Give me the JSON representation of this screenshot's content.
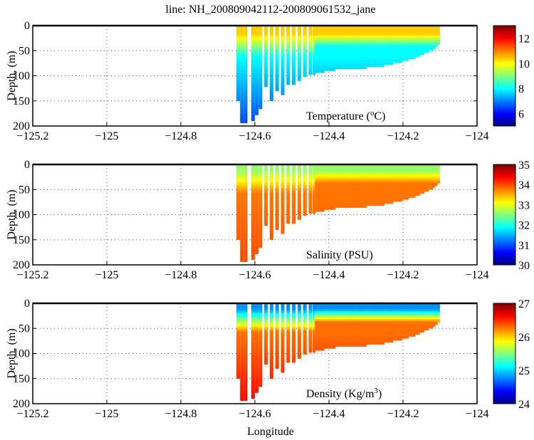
{
  "chart_data": {
    "type": "scatter",
    "title": "line: NH_200809042112-200809061532_jane",
    "xlabel": "Longitude",
    "ylabel": "Depth, (m)",
    "xlim": [
      -125.2,
      -124
    ],
    "ylim": [
      200,
      0
    ],
    "xticks": [
      "-125.2",
      "-125",
      "-124.8",
      "-124.6",
      "-124.4",
      "-124.2",
      "-124"
    ],
    "yticks": [
      "0",
      "50",
      "100",
      "150",
      "200"
    ],
    "grid": true,
    "casts": [
      {
        "lon": -124.645,
        "bottom": 145
      },
      {
        "lon": -124.635,
        "bottom": 190
      },
      {
        "lon": -124.625,
        "bottom": 190
      },
      {
        "lon": -124.605,
        "bottom": 188
      },
      {
        "lon": -124.595,
        "bottom": 175
      },
      {
        "lon": -124.585,
        "bottom": 162
      },
      {
        "lon": -124.57,
        "bottom": 120
      },
      {
        "lon": -124.555,
        "bottom": 148
      },
      {
        "lon": -124.54,
        "bottom": 128
      },
      {
        "lon": -124.525,
        "bottom": 133
      },
      {
        "lon": -124.51,
        "bottom": 115
      },
      {
        "lon": -124.495,
        "bottom": 115
      },
      {
        "lon": -124.48,
        "bottom": 106
      },
      {
        "lon": -124.465,
        "bottom": 100
      },
      {
        "lon": -124.45,
        "bottom": 95
      },
      {
        "lon": -124.435,
        "bottom": 92
      },
      {
        "lon": -124.4,
        "bottom": 85
      },
      {
        "lon": -124.35,
        "bottom": 82
      },
      {
        "lon": -124.3,
        "bottom": 80
      },
      {
        "lon": -124.25,
        "bottom": 76
      },
      {
        "lon": -124.2,
        "bottom": 68
      },
      {
        "lon": -124.15,
        "bottom": 55
      },
      {
        "lon": -124.12,
        "bottom": 45
      },
      {
        "lon": -124.1,
        "bottom": 30
      }
    ],
    "panels": [
      {
        "label": "Temperature (",
        "label_sup": "o",
        "label_end": "C)",
        "clim": [
          5,
          13
        ],
        "cticks": [
          "6",
          "8",
          "10",
          "12"
        ],
        "surface": 10.4,
        "mid": 8.0,
        "deep": 6.6,
        "mixed_depth": 15
      },
      {
        "label": "Salinity (PSU)",
        "label_sup": "",
        "label_end": "",
        "clim": [
          30,
          35
        ],
        "cticks": [
          "30",
          "31",
          "32",
          "33",
          "34",
          "35"
        ],
        "surface": 32.6,
        "mid": 33.8,
        "deep": 34.0,
        "mixed_depth": 10
      },
      {
        "label": "Density (Kg/m",
        "label_sup": "3",
        "label_end": ")",
        "clim": [
          24,
          27
        ],
        "cticks": [
          "24",
          "25",
          "26",
          "27"
        ],
        "surface": 24.8,
        "mid": 26.3,
        "deep": 26.6,
        "mixed_depth": 10
      }
    ]
  }
}
